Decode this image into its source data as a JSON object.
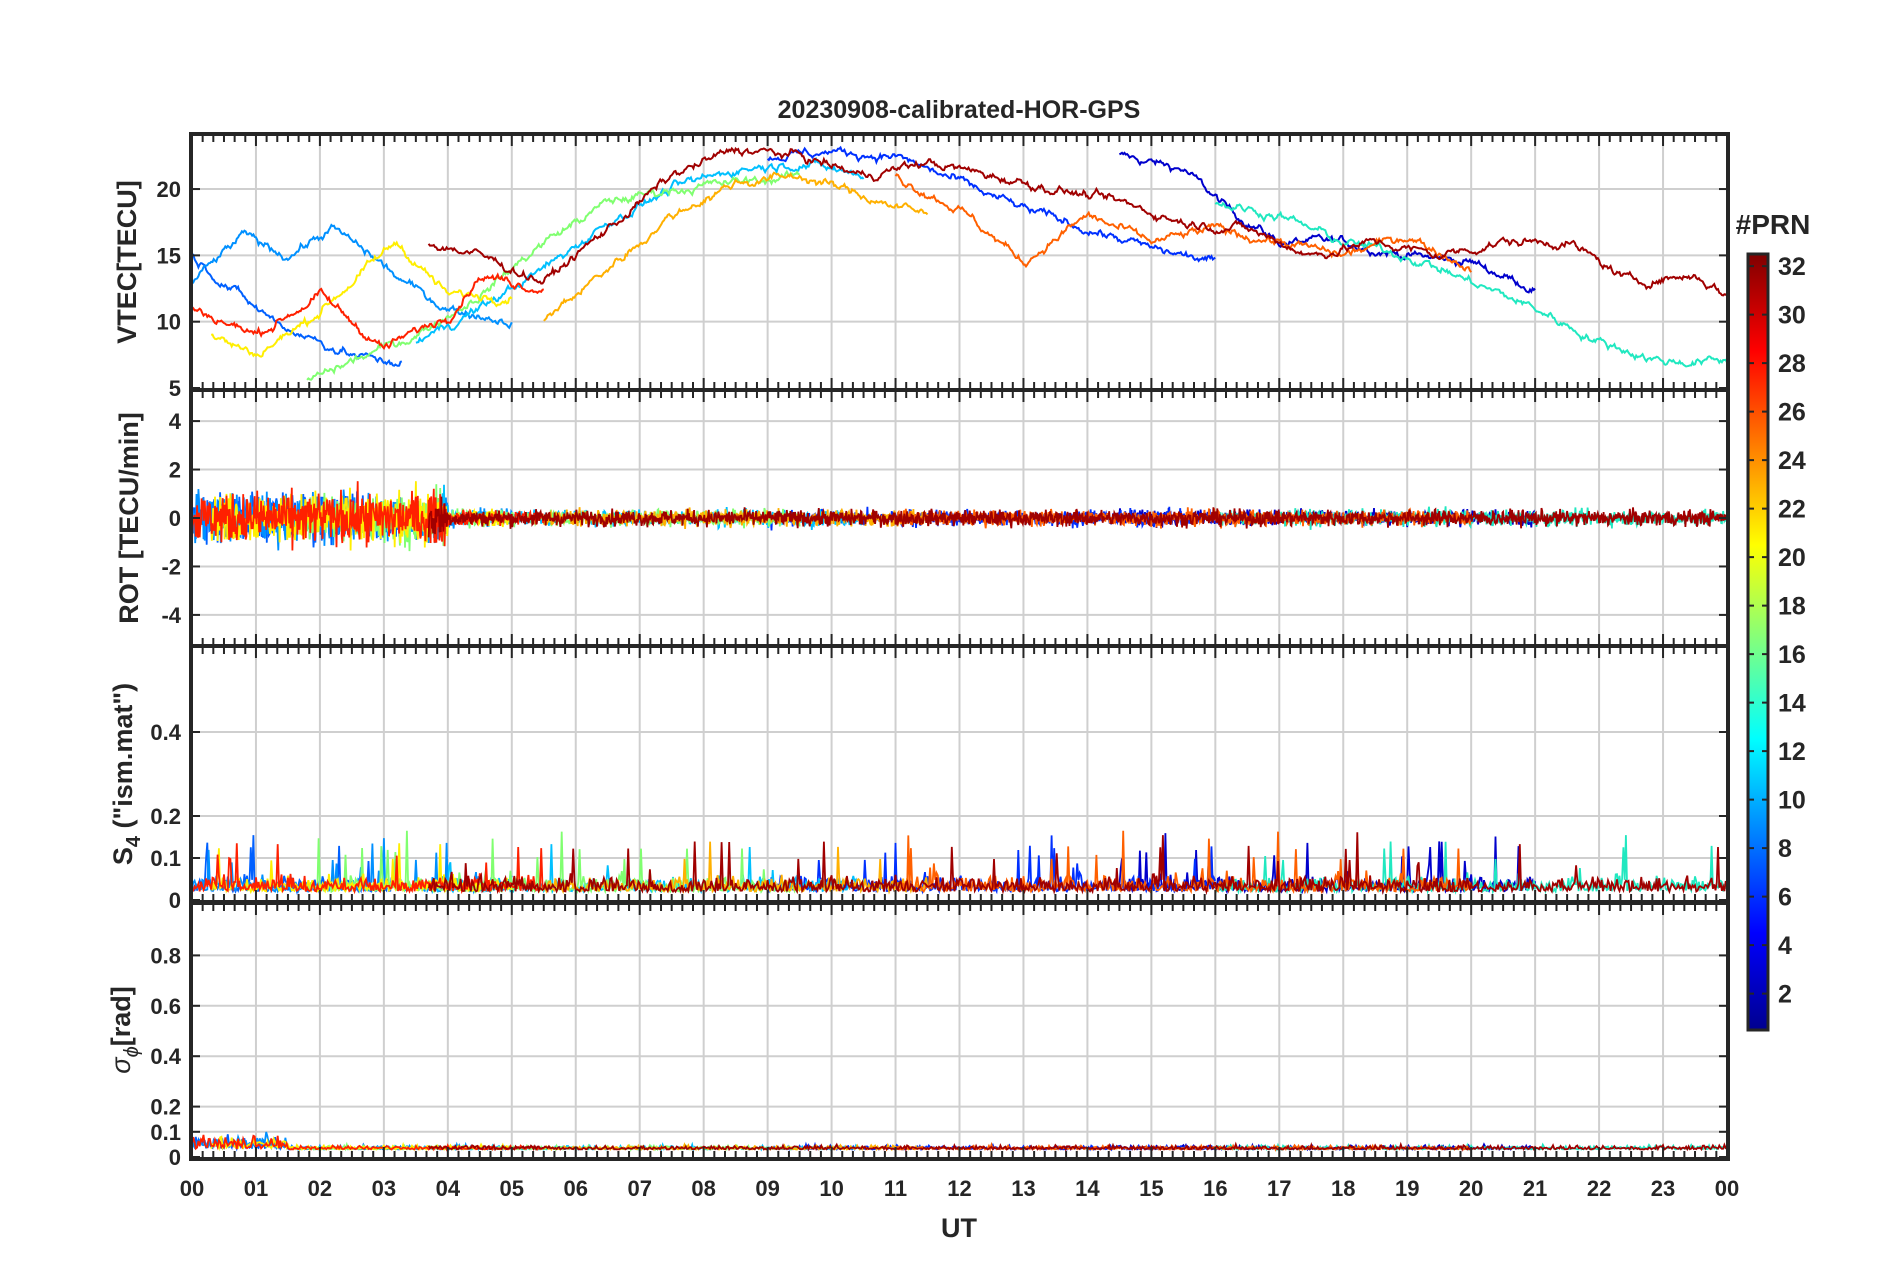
{
  "chart_data": {
    "type": "line",
    "title": "20230908-calibrated-HOR-GPS",
    "xlabel": "UT",
    "x_tick_labels": [
      "00",
      "01",
      "02",
      "03",
      "04",
      "05",
      "06",
      "07",
      "08",
      "09",
      "10",
      "11",
      "12",
      "13",
      "14",
      "15",
      "16",
      "17",
      "18",
      "19",
      "20",
      "21",
      "22",
      "23",
      "00"
    ],
    "xlim": [
      0,
      24
    ],
    "panels": [
      {
        "id": "vtec",
        "ylabel": "VTEC[TECU]",
        "ylim": [
          5,
          24
        ],
        "yticks": [
          5,
          10,
          15,
          20
        ],
        "ytick_labels": [
          "5",
          "10",
          "15",
          "20"
        ],
        "grid": true
      },
      {
        "id": "rot",
        "ylabel": "ROT [TECU/min]",
        "ylim": [
          -5.2,
          5.2
        ],
        "yticks": [
          -4,
          -2,
          0,
          2,
          4
        ],
        "ytick_labels": [
          "-4",
          "-2",
          "0",
          "2",
          "4"
        ],
        "grid": true
      },
      {
        "id": "s4",
        "ylabel_main": "S",
        "ylabel_sub": "4",
        "ylabel_rest": " (\"ism.mat\")",
        "ylim": [
          0,
          0.6
        ],
        "yticks": [
          0,
          0.1,
          0.2,
          0.4
        ],
        "ytick_labels": [
          "0",
          "0.1",
          "0.2",
          "0.4"
        ],
        "grid": true
      },
      {
        "id": "sigphi",
        "ylabel_main": "σ",
        "ylabel_sub": "ϕ",
        "ylabel_rest": "[rad]",
        "ylim": [
          0,
          1
        ],
        "yticks": [
          0,
          0.1,
          0.2,
          0.4,
          0.6,
          0.8
        ],
        "ytick_labels": [
          "0",
          "0.1",
          "0.2",
          "0.4",
          "0.6",
          "0.8"
        ],
        "grid": true
      }
    ],
    "colorbar": {
      "title": "#PRN",
      "range": [
        1,
        32
      ],
      "ticks": [
        "2",
        "4",
        "6",
        "8",
        "10",
        "12",
        "14",
        "16",
        "18",
        "20",
        "22",
        "24",
        "26",
        "28",
        "30",
        "32"
      ],
      "colormap": "jet"
    },
    "series": [
      {
        "prn": 2,
        "color": "#0000cc",
        "vtec": [
          [
            14.5,
            22.5
          ],
          [
            15.5,
            21.5
          ],
          [
            16.2,
            18.5
          ],
          [
            17,
            16
          ],
          [
            18,
            16
          ],
          [
            19,
            15
          ],
          [
            20,
            14.5
          ],
          [
            21,
            12.5
          ]
        ]
      },
      {
        "prn": 5,
        "color": "#0030ff",
        "vtec": [
          [
            9,
            22.5
          ],
          [
            10,
            22.8
          ],
          [
            11,
            22.5
          ],
          [
            12,
            20.5
          ],
          [
            13,
            18.5
          ],
          [
            14,
            17
          ],
          [
            15,
            15.5
          ],
          [
            16,
            14.5
          ]
        ]
      },
      {
        "prn": 7,
        "color": "#0060ff",
        "vtec": [
          [
            0,
            15
          ],
          [
            0.5,
            13
          ],
          [
            1,
            11
          ],
          [
            1.5,
            9.5
          ],
          [
            2,
            8.5
          ],
          [
            2.5,
            7.5
          ],
          [
            3,
            7
          ],
          [
            3.3,
            7
          ]
        ]
      },
      {
        "prn": 9,
        "color": "#0090ff",
        "vtec": [
          [
            0,
            13
          ],
          [
            0.8,
            16.5
          ],
          [
            1.5,
            15
          ],
          [
            2.2,
            17
          ],
          [
            2.8,
            15
          ],
          [
            3.3,
            13
          ],
          [
            4,
            11
          ],
          [
            5,
            10
          ]
        ]
      },
      {
        "prn": 11,
        "color": "#00c0ff",
        "vtec": [
          [
            3.5,
            8.5
          ],
          [
            4.5,
            11
          ],
          [
            5.5,
            14
          ],
          [
            6.5,
            17.5
          ],
          [
            7.5,
            20
          ],
          [
            8.5,
            21.5
          ],
          [
            9.5,
            22
          ],
          [
            10.5,
            21
          ]
        ]
      },
      {
        "prn": 14,
        "color": "#20e8c0",
        "vtec": [
          [
            16,
            19
          ],
          [
            17,
            18
          ],
          [
            18,
            16
          ],
          [
            19,
            15
          ],
          [
            20,
            13
          ],
          [
            21,
            11
          ],
          [
            22,
            8.5
          ],
          [
            23,
            7
          ],
          [
            24,
            7
          ]
        ]
      },
      {
        "prn": 17,
        "color": "#80ff70",
        "vtec": [
          [
            1.8,
            5.5
          ],
          [
            2.5,
            7
          ],
          [
            3.5,
            9
          ],
          [
            4.5,
            12
          ],
          [
            5.5,
            16
          ],
          [
            6.5,
            19
          ],
          [
            7.5,
            20
          ],
          [
            8.5,
            20.5
          ],
          [
            9.5,
            21
          ]
        ]
      },
      {
        "prn": 20,
        "color": "#ffee00",
        "vtec": [
          [
            0.3,
            9
          ],
          [
            1,
            7.5
          ],
          [
            1.8,
            10
          ],
          [
            2.5,
            13
          ],
          [
            3.2,
            16
          ],
          [
            4,
            12
          ],
          [
            5,
            12
          ]
        ]
      },
      {
        "prn": 22,
        "color": "#ffb000",
        "vtec": [
          [
            5.5,
            10
          ],
          [
            6.5,
            14
          ],
          [
            7.5,
            18
          ],
          [
            8.5,
            20.5
          ],
          [
            9.5,
            21
          ],
          [
            10.5,
            19.5
          ],
          [
            11.5,
            18
          ]
        ]
      },
      {
        "prn": 25,
        "color": "#ff6000",
        "vtec": [
          [
            11,
            21
          ],
          [
            12,
            18.5
          ],
          [
            13,
            14.5
          ],
          [
            14,
            18
          ],
          [
            15,
            16
          ],
          [
            16,
            17
          ],
          [
            17,
            16
          ],
          [
            18,
            15
          ],
          [
            19,
            16.5
          ],
          [
            20,
            14
          ]
        ]
      },
      {
        "prn": 28,
        "color": "#ff2000",
        "vtec": [
          [
            0,
            11
          ],
          [
            1,
            9
          ],
          [
            2,
            12
          ],
          [
            3,
            8
          ],
          [
            4,
            10.5
          ],
          [
            4.5,
            13.5
          ],
          [
            5.5,
            12.5
          ]
        ]
      },
      {
        "prn": 31,
        "color": "#a00000",
        "vtec": [
          [
            3.7,
            16
          ],
          [
            4.5,
            15
          ],
          [
            5.5,
            13
          ],
          [
            6.5,
            17
          ],
          [
            7.5,
            21
          ],
          [
            8.5,
            23
          ],
          [
            9.5,
            22.5
          ],
          [
            10.5,
            21
          ],
          [
            11.5,
            22
          ],
          [
            12.5,
            21
          ],
          [
            13.5,
            20
          ],
          [
            14.5,
            19
          ],
          [
            15.5,
            17.5
          ],
          [
            16.5,
            17
          ],
          [
            17.5,
            15
          ],
          [
            18.5,
            16
          ],
          [
            19.5,
            15
          ],
          [
            20.5,
            16
          ],
          [
            21.5,
            16
          ],
          [
            22.5,
            13
          ],
          [
            23.5,
            13.5
          ],
          [
            24,
            12
          ]
        ]
      }
    ]
  }
}
